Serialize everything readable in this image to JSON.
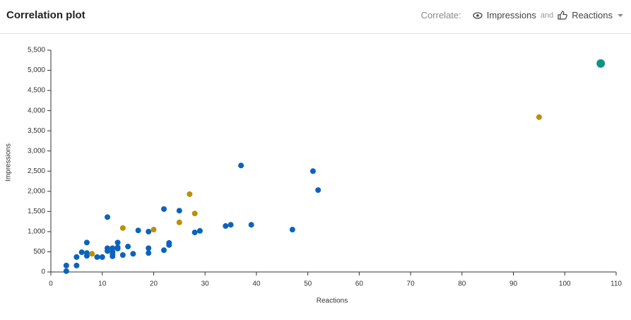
{
  "header": {
    "title": "Correlation plot",
    "correlate_label": "Correlate:",
    "metric_a": "Impressions",
    "joiner": "and",
    "metric_b": "Reactions"
  },
  "chart_data": {
    "type": "scatter",
    "x_label": "Reactions",
    "y_label": "Impressions",
    "xlim": [
      0,
      110
    ],
    "xticks": [
      0,
      10,
      20,
      30,
      40,
      50,
      60,
      70,
      80,
      90,
      100,
      110
    ],
    "ylim": [
      0,
      5500
    ],
    "yticks": [
      0,
      500,
      {
        "value": 1000,
        "label": "1,000"
      },
      {
        "value": 1500,
        "label": "1,500"
      },
      {
        "value": 2000,
        "label": "2,000"
      },
      {
        "value": 2500,
        "label": "2,500"
      },
      {
        "value": 3000,
        "label": "3,000"
      },
      {
        "value": 3500,
        "label": "3,500"
      },
      {
        "value": 4000,
        "label": "4,000"
      },
      {
        "value": 4500,
        "label": "4,500"
      },
      {
        "value": 5000,
        "label": "5,000"
      },
      {
        "value": 5500,
        "label": "5,500"
      }
    ],
    "series": [
      {
        "color": "#0b63bd",
        "x": [
          3,
          3,
          5,
          5,
          6,
          7,
          7,
          7,
          9,
          10,
          11,
          11,
          11,
          12,
          12,
          12,
          12,
          13,
          13,
          13,
          14,
          15,
          16,
          17,
          19,
          19,
          19,
          22,
          22,
          23,
          23,
          25,
          28,
          29,
          34,
          35,
          37,
          39,
          47,
          51,
          52
        ],
        "values": [
          20,
          160,
          160,
          370,
          490,
          730,
          400,
          470,
          370,
          370,
          1360,
          590,
          520,
          590,
          500,
          390,
          450,
          730,
          610,
          580,
          420,
          630,
          450,
          1030,
          1000,
          590,
          470,
          1560,
          540,
          720,
          670,
          1520,
          980,
          1020,
          1140,
          1170,
          2640,
          1170,
          1050,
          2500,
          2030
        ]
      },
      {
        "color": "#bb8f08",
        "x": [
          8,
          14,
          20,
          25,
          27,
          28,
          95
        ],
        "values": [
          450,
          1090,
          1050,
          1230,
          1930,
          1450,
          3840
        ]
      },
      {
        "color": "#0e9486",
        "x": [
          107
        ],
        "values": [
          5170
        ]
      }
    ]
  }
}
